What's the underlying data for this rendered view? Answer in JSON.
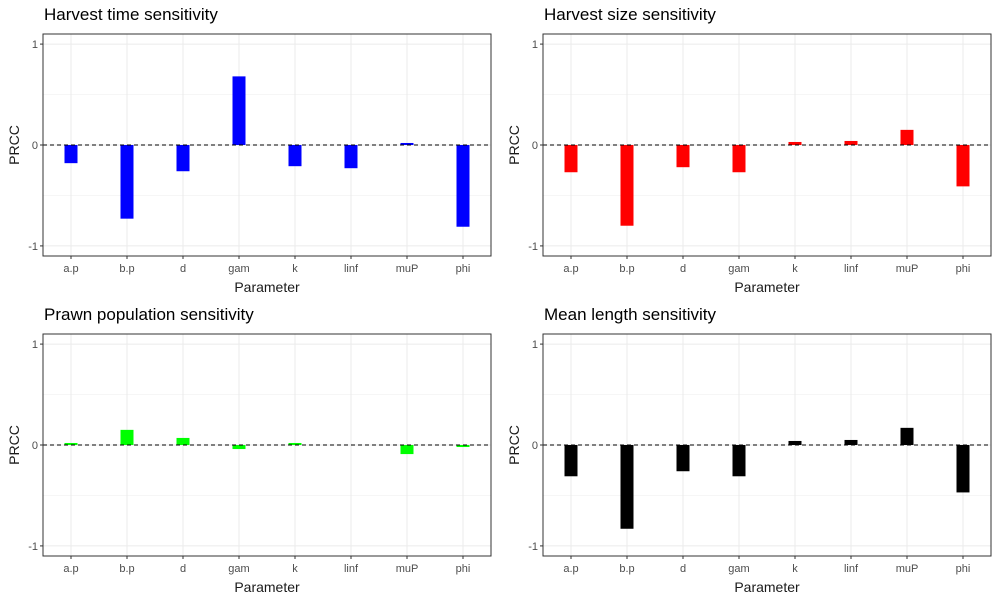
{
  "chart_data": [
    {
      "type": "bar",
      "title": "Harvest time sensitivity",
      "xlabel": "Parameter",
      "ylabel": "PRCC",
      "categories": [
        "a.p",
        "b.p",
        "d",
        "gam",
        "k",
        "linf",
        "muP",
        "phi"
      ],
      "values": [
        -0.18,
        -0.73,
        -0.26,
        0.68,
        -0.21,
        -0.23,
        0.02,
        -0.81
      ],
      "ylim": [
        -1.1,
        1.1
      ],
      "yticks": [
        -1,
        0,
        1
      ],
      "reference_line": 0,
      "color": "#0000FF",
      "grid": true
    },
    {
      "type": "bar",
      "title": "Harvest size sensitivity",
      "xlabel": "Parameter",
      "ylabel": "PRCC",
      "categories": [
        "a.p",
        "b.p",
        "d",
        "gam",
        "k",
        "linf",
        "muP",
        "phi"
      ],
      "values": [
        -0.27,
        -0.8,
        -0.22,
        -0.27,
        0.03,
        0.04,
        0.15,
        -0.41
      ],
      "ylim": [
        -1.1,
        1.1
      ],
      "yticks": [
        -1,
        0,
        1
      ],
      "reference_line": 0,
      "color": "#FF0000",
      "grid": true
    },
    {
      "type": "bar",
      "title": "Prawn population sensitivity",
      "xlabel": "Parameter",
      "ylabel": "PRCC",
      "categories": [
        "a.p",
        "b.p",
        "d",
        "gam",
        "k",
        "linf",
        "muP",
        "phi"
      ],
      "values": [
        0.02,
        0.15,
        0.07,
        -0.04,
        0.02,
        0.0,
        -0.09,
        -0.02
      ],
      "ylim": [
        -1.1,
        1.1
      ],
      "yticks": [
        -1,
        0,
        1
      ],
      "reference_line": 0,
      "color": "#00FF00",
      "grid": true
    },
    {
      "type": "bar",
      "title": "Mean length sensitivity",
      "xlabel": "Parameter",
      "ylabel": "PRCC",
      "categories": [
        "a.p",
        "b.p",
        "d",
        "gam",
        "k",
        "linf",
        "muP",
        "phi"
      ],
      "values": [
        -0.31,
        -0.83,
        -0.26,
        -0.31,
        0.04,
        0.05,
        0.17,
        -0.47
      ],
      "ylim": [
        -1.1,
        1.1
      ],
      "yticks": [
        -1,
        0,
        1
      ],
      "reference_line": 0,
      "color": "#000000",
      "grid": true
    }
  ]
}
